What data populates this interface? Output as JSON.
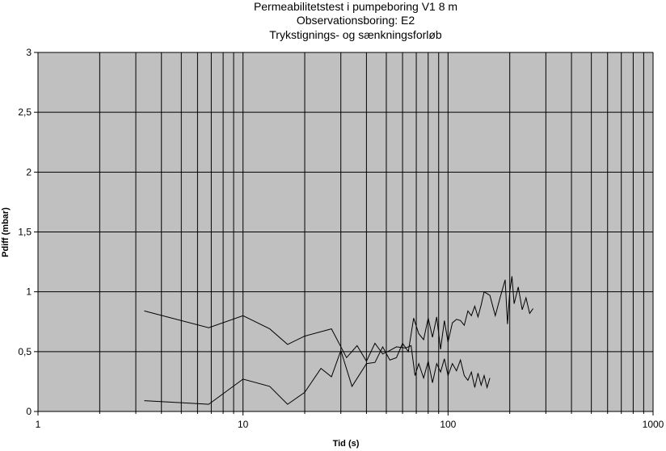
{
  "chart_data": {
    "type": "line",
    "title": [
      "Permeabilitetstest i pumpeboring V1 8 m",
      "Observationsboring: E2",
      "Trykstignings- og sænkningsforløb"
    ],
    "x_label": "Tid (s)",
    "y_label": "Pdiff (mbar)",
    "x_log": true,
    "xlim": [
      1,
      1000
    ],
    "xticks": [
      1,
      10,
      100,
      1000
    ],
    "xminorticks": [
      2,
      3,
      4,
      5,
      6,
      7,
      8,
      9,
      20,
      30,
      40,
      50,
      60,
      70,
      80,
      90,
      200,
      300,
      400,
      500,
      600,
      700,
      800,
      900
    ],
    "ylim": [
      0,
      3
    ],
    "yticks": [
      0,
      {
        "value": 0.5,
        "label": "0,5"
      },
      1,
      {
        "value": 1.5,
        "label": "1,5"
      },
      2,
      {
        "value": 2.5,
        "label": "2,5"
      },
      3
    ],
    "grid": true,
    "plot_background": "#c0c0c0",
    "series": [
      {
        "color": "#000000",
        "x": [
          3.3,
          6.8,
          10,
          13.5,
          16.5,
          20,
          27,
          32,
          36,
          40,
          44,
          48,
          52,
          56,
          62,
          66,
          69,
          72,
          76,
          80,
          84,
          88,
          92,
          96,
          100,
          105,
          110,
          115,
          120,
          125,
          130,
          135,
          140,
          145,
          150,
          155,
          160
        ],
        "values": [
          0.84,
          0.7,
          0.8,
          0.69,
          0.56,
          0.63,
          0.69,
          0.45,
          0.55,
          0.42,
          0.57,
          0.48,
          0.51,
          0.54,
          0.53,
          0.55,
          0.3,
          0.4,
          0.28,
          0.42,
          0.24,
          0.4,
          0.33,
          0.44,
          0.3,
          0.4,
          0.34,
          0.43,
          0.3,
          0.26,
          0.33,
          0.2,
          0.32,
          0.22,
          0.3,
          0.2,
          0.28
        ]
      },
      {
        "color": "#000000",
        "x": [
          3.3,
          6.8,
          10,
          13.5,
          16.5,
          20,
          24,
          27,
          30,
          34,
          40,
          44,
          48,
          52,
          56,
          60,
          64,
          68,
          72,
          76,
          80,
          84,
          88,
          92,
          96,
          100,
          105,
          110,
          115,
          120,
          125,
          130,
          135,
          140,
          145,
          150,
          160,
          170,
          180,
          190,
          195,
          200,
          205,
          210,
          220,
          230,
          240,
          250,
          260
        ],
        "values": [
          0.09,
          0.06,
          0.27,
          0.21,
          0.06,
          0.16,
          0.36,
          0.29,
          0.51,
          0.21,
          0.4,
          0.41,
          0.54,
          0.43,
          0.45,
          0.57,
          0.5,
          0.78,
          0.65,
          0.6,
          0.78,
          0.62,
          0.79,
          0.52,
          0.76,
          0.58,
          0.74,
          0.77,
          0.76,
          0.72,
          0.84,
          0.8,
          0.88,
          0.79,
          0.89,
          1.0,
          0.97,
          0.8,
          0.96,
          1.1,
          0.73,
          1.0,
          1.13,
          0.9,
          1.04,
          0.85,
          0.95,
          0.82,
          0.86
        ]
      }
    ]
  }
}
